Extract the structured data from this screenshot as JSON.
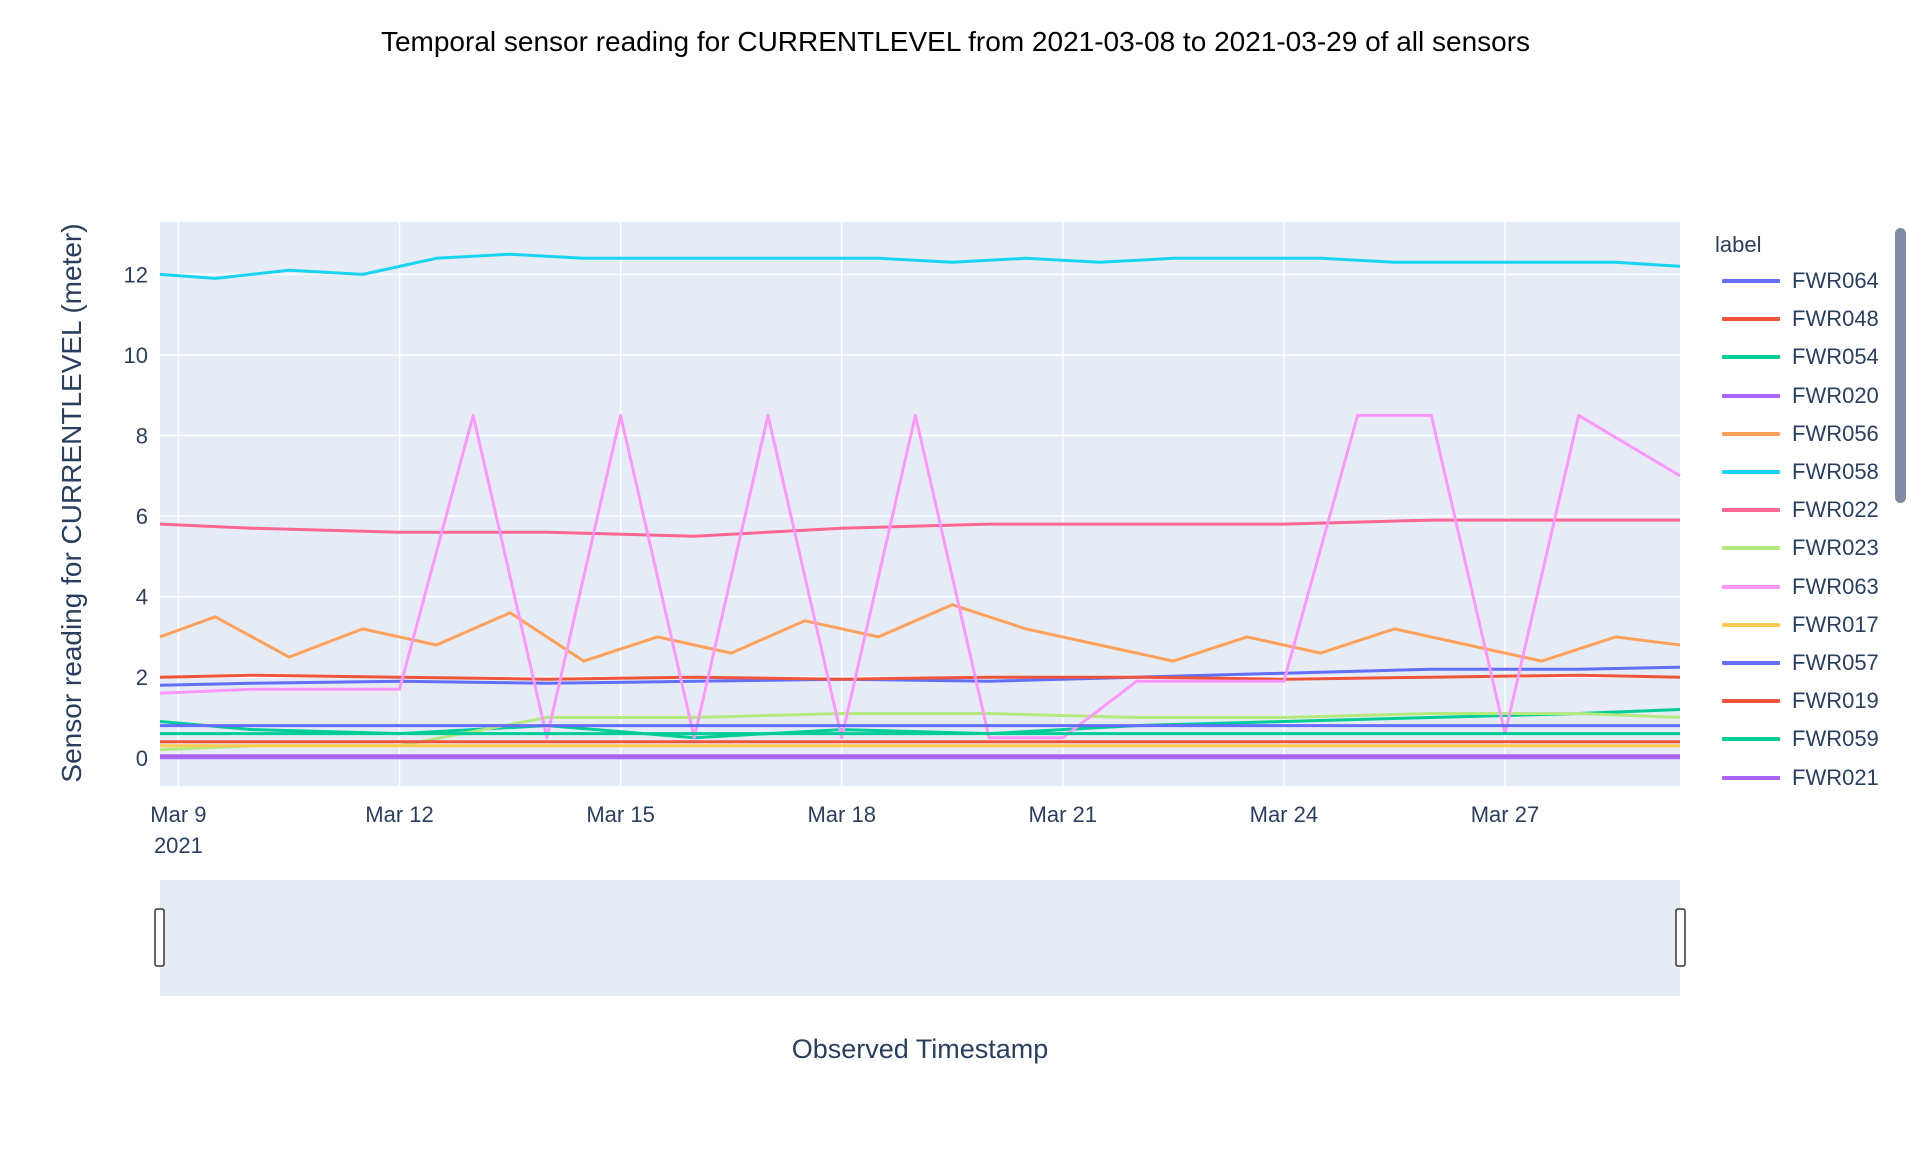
{
  "chart_data": {
    "type": "line",
    "title": "Temporal sensor reading for CURRENTLEVEL from 2021-03-08 to 2021-03-29 of all sensors",
    "xlabel": "Observed Timestamp",
    "ylabel": "Sensor reading for CURRENTLEVEL (meter)",
    "x_range": [
      "2021-03-08T18:00",
      "2021-03-29T09:00"
    ],
    "ylim": [
      -0.7,
      13.3
    ],
    "x_ticks": [
      "Mar 9",
      "Mar 12",
      "Mar 15",
      "Mar 18",
      "Mar 21",
      "Mar 24",
      "Mar 27"
    ],
    "x_tick_dates": [
      "2021-03-09",
      "2021-03-12",
      "2021-03-15",
      "2021-03-18",
      "2021-03-21",
      "2021-03-24",
      "2021-03-27"
    ],
    "x_year_label": "2021",
    "y_ticks": [
      0,
      2,
      4,
      6,
      8,
      10,
      12
    ],
    "grid": true,
    "legend_title": "label",
    "legend_placement": "right",
    "plot_background": "#e5ecf6",
    "series": [
      {
        "name": "FWR064",
        "color": "#636efa",
        "x": [
          "2021-03-08T18:00",
          "2021-03-10T00:00",
          "2021-03-12T00:00",
          "2021-03-14T00:00",
          "2021-03-16T00:00",
          "2021-03-18T00:00",
          "2021-03-20T00:00",
          "2021-03-22T00:00",
          "2021-03-24T00:00",
          "2021-03-26T00:00",
          "2021-03-28T00:00",
          "2021-03-29T09:00"
        ],
        "y": [
          1.8,
          1.85,
          1.9,
          1.85,
          1.9,
          1.95,
          1.9,
          2.0,
          2.1,
          2.2,
          2.2,
          2.25
        ]
      },
      {
        "name": "FWR048",
        "color": "#ef553b",
        "x": [
          "2021-03-08T18:00",
          "2021-03-10T00:00",
          "2021-03-12T00:00",
          "2021-03-14T00:00",
          "2021-03-16T00:00",
          "2021-03-18T00:00",
          "2021-03-20T00:00",
          "2021-03-22T00:00",
          "2021-03-24T00:00",
          "2021-03-26T00:00",
          "2021-03-28T00:00",
          "2021-03-29T09:00"
        ],
        "y": [
          2.0,
          2.05,
          2.0,
          1.95,
          2.0,
          1.95,
          2.0,
          2.0,
          1.95,
          2.0,
          2.05,
          2.0
        ]
      },
      {
        "name": "FWR054",
        "color": "#00cc96",
        "x": [
          "2021-03-08T18:00",
          "2021-03-10T00:00",
          "2021-03-12T00:00",
          "2021-03-14T00:00",
          "2021-03-16T00:00",
          "2021-03-18T00:00",
          "2021-03-20T00:00",
          "2021-03-22T00:00",
          "2021-03-24T00:00",
          "2021-03-26T00:00",
          "2021-03-28T00:00",
          "2021-03-29T09:00"
        ],
        "y": [
          0.9,
          0.7,
          0.6,
          0.8,
          0.5,
          0.7,
          0.6,
          0.8,
          0.9,
          1.0,
          1.1,
          1.2
        ]
      },
      {
        "name": "FWR020",
        "color": "#ab63fa",
        "x": [
          "2021-03-08T18:00",
          "2021-03-29T09:00"
        ],
        "y": [
          0.0,
          0.0
        ]
      },
      {
        "name": "FWR056",
        "color": "#ffa15a",
        "x": [
          "2021-03-08T18:00",
          "2021-03-09T12:00",
          "2021-03-10T12:00",
          "2021-03-11T12:00",
          "2021-03-12T12:00",
          "2021-03-13T12:00",
          "2021-03-14T12:00",
          "2021-03-15T12:00",
          "2021-03-16T12:00",
          "2021-03-17T12:00",
          "2021-03-18T12:00",
          "2021-03-19T12:00",
          "2021-03-20T12:00",
          "2021-03-21T12:00",
          "2021-03-22T12:00",
          "2021-03-23T12:00",
          "2021-03-24T12:00",
          "2021-03-25T12:00",
          "2021-03-26T12:00",
          "2021-03-27T12:00",
          "2021-03-28T12:00",
          "2021-03-29T09:00"
        ],
        "y": [
          3.0,
          3.5,
          2.5,
          3.2,
          2.8,
          3.6,
          2.4,
          3.0,
          2.6,
          3.4,
          3.0,
          3.8,
          3.2,
          2.8,
          2.4,
          3.0,
          2.6,
          3.2,
          2.8,
          2.4,
          3.0,
          2.8
        ]
      },
      {
        "name": "FWR058",
        "color": "#19d3f3",
        "x": [
          "2021-03-08T18:00",
          "2021-03-09T12:00",
          "2021-03-10T12:00",
          "2021-03-11T12:00",
          "2021-03-12T12:00",
          "2021-03-13T12:00",
          "2021-03-14T12:00",
          "2021-03-15T12:00",
          "2021-03-16T12:00",
          "2021-03-17T12:00",
          "2021-03-18T12:00",
          "2021-03-19T12:00",
          "2021-03-20T12:00",
          "2021-03-21T12:00",
          "2021-03-22T12:00",
          "2021-03-23T12:00",
          "2021-03-24T12:00",
          "2021-03-25T12:00",
          "2021-03-26T12:00",
          "2021-03-27T12:00",
          "2021-03-28T12:00",
          "2021-03-29T09:00"
        ],
        "y": [
          12.0,
          11.9,
          12.1,
          12.0,
          12.4,
          12.5,
          12.4,
          12.4,
          12.4,
          12.4,
          12.4,
          12.3,
          12.4,
          12.3,
          12.4,
          12.4,
          12.4,
          12.3,
          12.3,
          12.3,
          12.3,
          12.2
        ]
      },
      {
        "name": "FWR022",
        "color": "#ff6692",
        "x": [
          "2021-03-08T18:00",
          "2021-03-10T00:00",
          "2021-03-12T00:00",
          "2021-03-14T00:00",
          "2021-03-16T00:00",
          "2021-03-18T00:00",
          "2021-03-20T00:00",
          "2021-03-22T00:00",
          "2021-03-24T00:00",
          "2021-03-26T00:00",
          "2021-03-28T00:00",
          "2021-03-29T09:00"
        ],
        "y": [
          5.8,
          5.7,
          5.6,
          5.6,
          5.5,
          5.7,
          5.8,
          5.8,
          5.8,
          5.9,
          5.9,
          5.9
        ]
      },
      {
        "name": "FWR023",
        "color": "#b6e880",
        "x": [
          "2021-03-08T18:00",
          "2021-03-10T00:00",
          "2021-03-12T00:00",
          "2021-03-14T00:00",
          "2021-03-16T00:00",
          "2021-03-18T00:00",
          "2021-03-20T00:00",
          "2021-03-22T00:00",
          "2021-03-24T00:00",
          "2021-03-26T00:00",
          "2021-03-28T00:00",
          "2021-03-29T09:00"
        ],
        "y": [
          0.2,
          0.3,
          0.3,
          1.0,
          1.0,
          1.1,
          1.1,
          1.0,
          1.0,
          1.1,
          1.1,
          1.0
        ]
      },
      {
        "name": "FWR063",
        "color": "#ff97ff",
        "x": [
          "2021-03-08T18:00",
          "2021-03-10T00:00",
          "2021-03-12T00:00",
          "2021-03-13T00:00",
          "2021-03-14T00:00",
          "2021-03-15T00:00",
          "2021-03-16T00:00",
          "2021-03-17T00:00",
          "2021-03-18T00:00",
          "2021-03-19T00:00",
          "2021-03-20T00:00",
          "2021-03-21T00:00",
          "2021-03-22T00:00",
          "2021-03-23T00:00",
          "2021-03-24T00:00",
          "2021-03-25T00:00",
          "2021-03-26T00:00",
          "2021-03-27T00:00",
          "2021-03-28T00:00",
          "2021-03-29T09:00"
        ],
        "y": [
          1.6,
          1.7,
          1.7,
          8.5,
          0.5,
          8.5,
          0.5,
          8.5,
          0.5,
          8.5,
          0.5,
          0.5,
          1.9,
          1.9,
          1.9,
          8.5,
          8.5,
          0.6,
          8.5,
          7.0
        ]
      },
      {
        "name": "FWR017",
        "color": "#fecb52",
        "x": [
          "2021-03-08T18:00",
          "2021-03-29T09:00"
        ],
        "y": [
          0.3,
          0.3
        ]
      },
      {
        "name": "FWR057",
        "color": "#636efa",
        "x": [
          "2021-03-08T18:00",
          "2021-03-29T09:00"
        ],
        "y": [
          0.8,
          0.8
        ]
      },
      {
        "name": "FWR019",
        "color": "#ef553b",
        "x": [
          "2021-03-08T18:00",
          "2021-03-29T09:00"
        ],
        "y": [
          0.4,
          0.4
        ]
      },
      {
        "name": "FWR059",
        "color": "#00cc96",
        "x": [
          "2021-03-08T18:00",
          "2021-03-29T09:00"
        ],
        "y": [
          0.6,
          0.6
        ]
      },
      {
        "name": "FWR021",
        "color": "#ab63fa",
        "x": [
          "2021-03-08T18:00",
          "2021-03-29T09:00"
        ],
        "y": [
          0.05,
          0.05
        ]
      }
    ]
  }
}
